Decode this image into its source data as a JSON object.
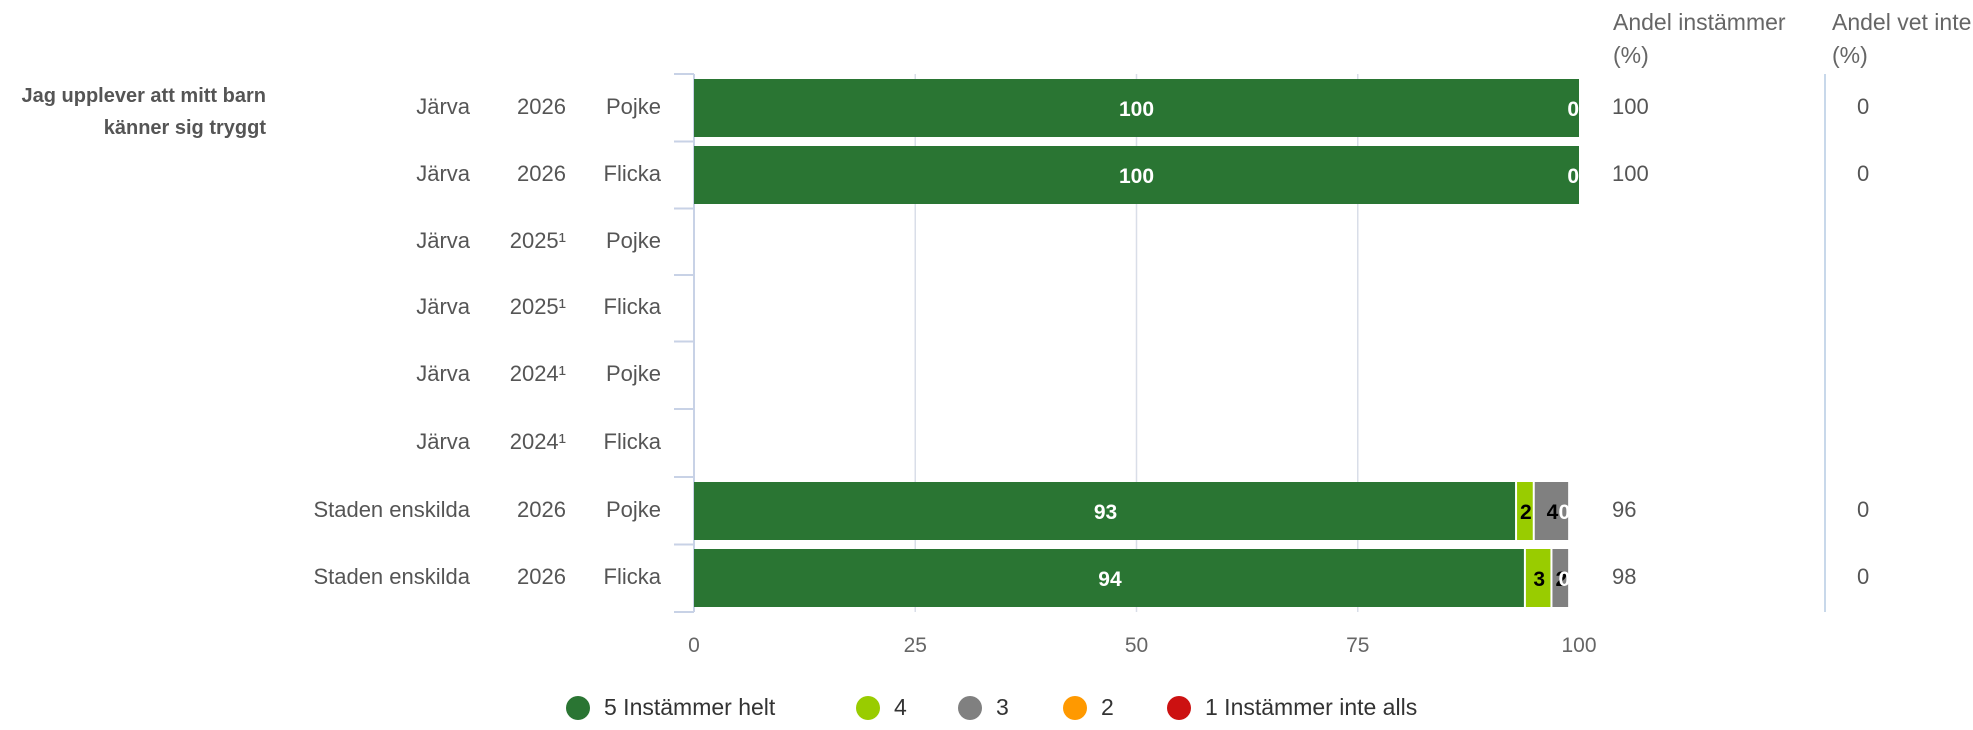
{
  "question": "Jag upplever att mitt barn känner sig tryggt",
  "columns": {
    "share_agree_header": "Andel instämmer (%)",
    "share_dontknow_header": "Andel vet inte (%)"
  },
  "colors": {
    "5": "#2a7533",
    "4": "#99cc00",
    "3": "#808080",
    "2": "#ff9900",
    "1": "#cc1111",
    "grid": "#d9dee8",
    "axis": "#c8d2e6",
    "separator": "#c8d8ea"
  },
  "chart_data": {
    "type": "bar",
    "orientation": "horizontal",
    "stacked": true,
    "xlim": [
      0,
      100
    ],
    "x_ticks": [
      "0",
      "25",
      "50",
      "75",
      "100"
    ],
    "grid": true,
    "legend_position": "bottom",
    "series_labels": [
      "5 Instämmer helt",
      "4",
      "3",
      "2",
      "1 Instämmer inte alls"
    ],
    "rows": [
      {
        "area": "Järva",
        "year": "2026",
        "gender": "Pojke",
        "values": [
          100,
          0,
          0,
          0,
          0
        ],
        "labels": [
          "100",
          "",
          "0",
          "",
          ""
        ],
        "agree": "100",
        "dont_know": "0"
      },
      {
        "area": "Järva",
        "year": "2026",
        "gender": "Flicka",
        "values": [
          100,
          0,
          0,
          0,
          0
        ],
        "labels": [
          "100",
          "",
          "0",
          "",
          ""
        ],
        "agree": "100",
        "dont_know": "0"
      },
      {
        "area": "Järva",
        "year": "2025¹",
        "gender": "Pojke",
        "values": [],
        "labels": [],
        "agree": "",
        "dont_know": ""
      },
      {
        "area": "Järva",
        "year": "2025¹",
        "gender": "Flicka",
        "values": [],
        "labels": [],
        "agree": "",
        "dont_know": ""
      },
      {
        "area": "Järva",
        "year": "2024¹",
        "gender": "Pojke",
        "values": [],
        "labels": [],
        "agree": "",
        "dont_know": ""
      },
      {
        "area": "Järva",
        "year": "2024¹",
        "gender": "Flicka",
        "values": [],
        "labels": [],
        "agree": "",
        "dont_know": ""
      },
      {
        "area": "Staden enskilda",
        "year": "2026",
        "gender": "Pojke",
        "values": [
          93,
          2,
          4,
          0,
          0
        ],
        "labels": [
          "93",
          "2",
          "4",
          "0",
          ""
        ],
        "agree": "96",
        "dont_know": "0"
      },
      {
        "area": "Staden enskilda",
        "year": "2026",
        "gender": "Flicka",
        "values": [
          94,
          3,
          2,
          0,
          0
        ],
        "labels": [
          "94",
          "3",
          "2",
          "0",
          ""
        ],
        "agree": "98",
        "dont_know": "0"
      }
    ]
  }
}
